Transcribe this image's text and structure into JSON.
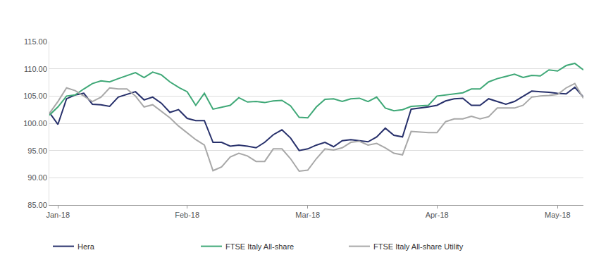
{
  "chart_data": {
    "type": "line",
    "categories": [
      null,
      "Jan-18",
      null,
      null,
      null,
      null,
      null,
      null,
      null,
      null,
      null,
      null,
      null,
      null,
      null,
      null,
      "Feb-18",
      null,
      null,
      null,
      null,
      null,
      null,
      null,
      null,
      null,
      null,
      null,
      null,
      null,
      "Mar-18",
      null,
      null,
      null,
      null,
      null,
      null,
      null,
      null,
      null,
      null,
      null,
      null,
      null,
      null,
      "Apr-18",
      null,
      null,
      null,
      null,
      null,
      null,
      null,
      null,
      null,
      null,
      null,
      null,
      null,
      "May-18",
      null,
      null,
      null
    ],
    "series": [
      {
        "name": "Hera",
        "color": "#27306b",
        "values": [
          102.0,
          99.8,
          104.5,
          105.2,
          105.5,
          103.5,
          103.4,
          103.1,
          104.8,
          105.3,
          105.8,
          104.3,
          104.8,
          103.7,
          102.0,
          102.5,
          100.9,
          100.5,
          100.5,
          96.5,
          96.5,
          95.8,
          96.0,
          95.8,
          95.5,
          96.5,
          97.9,
          98.8,
          97.3,
          95.0,
          95.3,
          96.0,
          96.5,
          95.7,
          96.8,
          97.0,
          96.8,
          96.6,
          97.5,
          99.1,
          97.8,
          97.5,
          102.6,
          102.8,
          103.0,
          103.3,
          104.1,
          104.5,
          104.6,
          103.3,
          103.3,
          104.5,
          104.0,
          103.5,
          104.0,
          105.0,
          105.9,
          105.8,
          105.7,
          105.5,
          105.4,
          106.6,
          104.8
        ]
      },
      {
        "name": "FTSE Italy All-share",
        "color": "#3fa877",
        "values": [
          101.5,
          103.0,
          105.0,
          105.2,
          106.3,
          107.3,
          107.8,
          107.6,
          108.2,
          108.8,
          109.3,
          108.4,
          109.4,
          108.9,
          107.6,
          106.6,
          105.8,
          103.3,
          105.5,
          102.6,
          103.0,
          103.3,
          104.7,
          103.9,
          104.0,
          103.8,
          104.1,
          104.2,
          103.2,
          101.1,
          101.0,
          103.0,
          104.4,
          104.5,
          104.0,
          104.5,
          104.6,
          104.0,
          104.8,
          102.8,
          102.3,
          102.5,
          103.1,
          103.2,
          103.3,
          105.0,
          105.2,
          105.4,
          105.6,
          106.3,
          106.3,
          107.6,
          108.2,
          108.6,
          109.0,
          108.4,
          108.8,
          108.7,
          109.8,
          109.6,
          110.6,
          111.0,
          109.8
        ]
      },
      {
        "name": "FTSE Italy All-share Utility",
        "color": "#a8a8a8",
        "values": [
          101.8,
          104.0,
          106.5,
          106.0,
          105.0,
          104.0,
          104.8,
          106.5,
          106.3,
          106.3,
          105.0,
          103.0,
          103.4,
          102.2,
          101.0,
          99.5,
          98.2,
          97.0,
          96.0,
          91.3,
          92.0,
          93.8,
          94.5,
          94.0,
          93.0,
          93.0,
          95.3,
          95.3,
          93.5,
          91.2,
          91.4,
          93.5,
          95.3,
          95.1,
          95.5,
          96.5,
          96.7,
          96.0,
          96.3,
          95.5,
          94.5,
          94.2,
          98.5,
          98.4,
          98.3,
          98.3,
          100.3,
          100.8,
          100.8,
          101.3,
          100.8,
          101.2,
          102.8,
          102.8,
          102.8,
          103.3,
          104.8,
          105.0,
          105.1,
          105.3,
          106.5,
          107.3,
          104.6
        ]
      }
    ],
    "ylim": [
      85,
      115
    ],
    "yticks": [
      {
        "value": 85,
        "label": "85.00"
      },
      {
        "value": 90,
        "label": "90.00"
      },
      {
        "value": 95,
        "label": "95.00"
      },
      {
        "value": 100,
        "label": "100.00"
      },
      {
        "value": 105,
        "label": "105.00"
      },
      {
        "value": 110,
        "label": "110.00"
      },
      {
        "value": 115,
        "label": "115.00"
      }
    ],
    "grid": true,
    "legend": "bottom"
  }
}
